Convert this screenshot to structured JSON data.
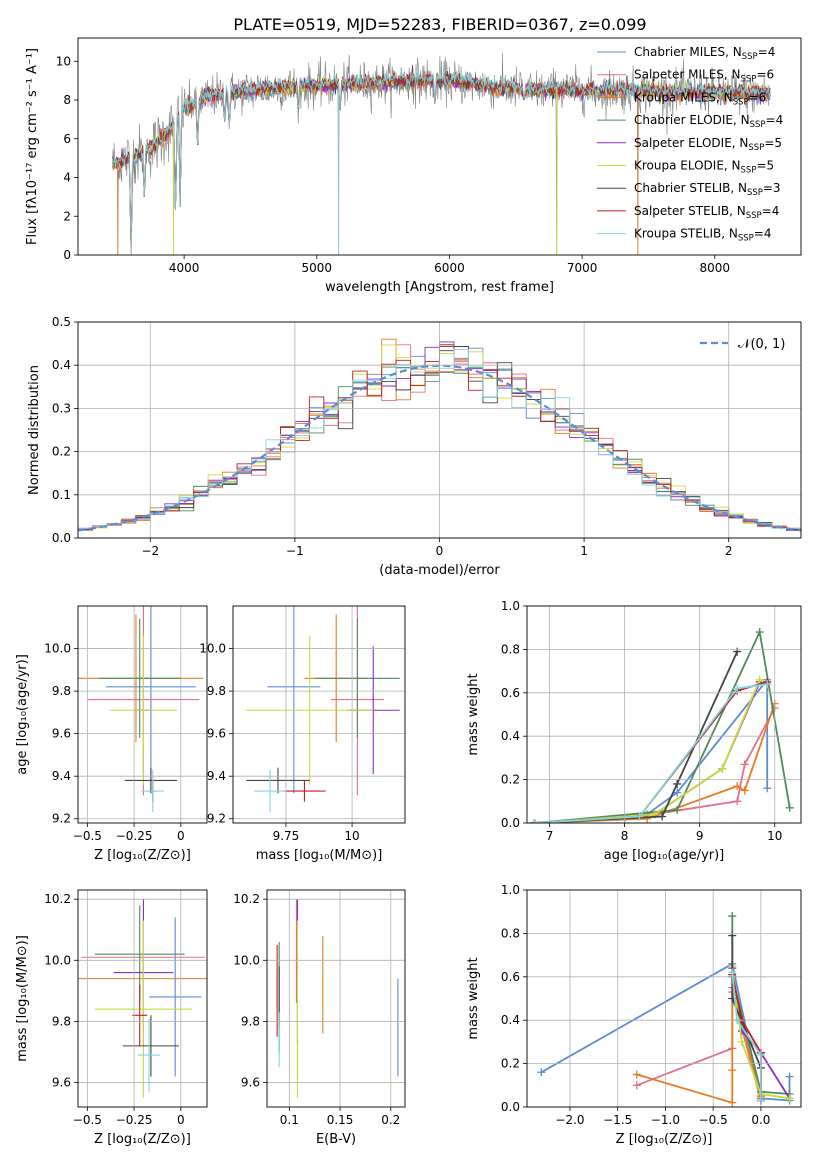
{
  "title": "PLATE=0519, MJD=52283, FIBERID=0367, z=0.099",
  "colors": {
    "Chabrier MILES": "#5b8bd8",
    "Salpeter MILES": "#e36f8a",
    "Kroupa MILES": "#e37c22",
    "Chabrier ELODIE": "#4f8a5a",
    "Salpeter ELODIE": "#8a2ac8",
    "Kroupa ELODIE": "#c9dc3c",
    "Chabrier STELIB": "#444444",
    "Salpeter STELIB": "#c41e1e",
    "Kroupa STELIB": "#7fd6e0"
  },
  "legend_spectrum": [
    {
      "model": "Chabrier MILES",
      "prefix": "Chabrier MILES, N",
      "sub": "SSP",
      "suffix": "=4"
    },
    {
      "model": "Salpeter MILES",
      "prefix": "Salpeter MILES, N",
      "sub": "SSP",
      "suffix": "=6"
    },
    {
      "model": "Kroupa MILES",
      "prefix": "Kroupa MILES, N",
      "sub": "SSP",
      "suffix": "=6"
    },
    {
      "model": "Chabrier ELODIE",
      "prefix": "Chabrier ELODIE, N",
      "sub": "SSP",
      "suffix": "=4"
    },
    {
      "model": "Salpeter ELODIE",
      "prefix": "Salpeter ELODIE, N",
      "sub": "SSP",
      "suffix": "=5"
    },
    {
      "model": "Kroupa ELODIE",
      "prefix": "Kroupa ELODIE, N",
      "sub": "SSP",
      "suffix": "=5"
    },
    {
      "model": "Chabrier STELIB",
      "prefix": "Chabrier STELIB, N",
      "sub": "SSP",
      "suffix": "=3"
    },
    {
      "model": "Salpeter STELIB",
      "prefix": "Salpeter STELIB, N",
      "sub": "SSP",
      "suffix": "=4"
    },
    {
      "model": "Kroupa STELIB",
      "prefix": "Kroupa STELIB, N",
      "sub": "SSP",
      "suffix": "=4"
    }
  ],
  "chart_data": [
    {
      "id": "spectrum",
      "type": "line",
      "xlabel": "wavelength [Angstrom, rest frame]",
      "ylabel": "Flux [fλ10⁻¹⁷ erg cm⁻² s⁻¹ A⁻¹]",
      "xlim": [
        3200,
        8650
      ],
      "ylim": [
        0,
        11.2
      ],
      "xticks": [
        4000,
        5000,
        6000,
        7000,
        8000
      ],
      "yticks": [
        0,
        2,
        4,
        6,
        8,
        10
      ],
      "grid": false,
      "legend": "right",
      "x_range": [
        3460,
        8420
      ],
      "continuum": [
        [
          3460,
          4.7
        ],
        [
          3600,
          5.0
        ],
        [
          3750,
          5.5
        ],
        [
          3900,
          6.5
        ],
        [
          4000,
          7.6
        ],
        [
          4200,
          8.2
        ],
        [
          4400,
          8.4
        ],
        [
          4600,
          8.6
        ],
        [
          4900,
          8.7
        ],
        [
          5200,
          8.8
        ],
        [
          5500,
          8.9
        ],
        [
          5800,
          9.0
        ],
        [
          6000,
          9.0
        ],
        [
          6300,
          8.7
        ],
        [
          6600,
          8.5
        ],
        [
          7000,
          8.5
        ],
        [
          7300,
          8.5
        ],
        [
          7600,
          8.4
        ],
        [
          8000,
          8.4
        ],
        [
          8420,
          8.3
        ]
      ],
      "dips": [
        [
          3600,
          0
        ],
        [
          3700,
          3.0
        ],
        [
          3935,
          2.0
        ],
        [
          3970,
          2.5
        ],
        [
          4101,
          5.5
        ],
        [
          4305,
          6.8
        ],
        [
          4340,
          6.5
        ],
        [
          4861,
          7.3
        ],
        [
          5175,
          7.4
        ],
        [
          5890,
          7.8
        ],
        [
          6563,
          8.0
        ]
      ],
      "spikes": [
        [
          3500,
          0
        ],
        [
          3920,
          0
        ],
        [
          5165,
          0
        ],
        [
          6810,
          0
        ],
        [
          7420,
          0
        ]
      ]
    },
    {
      "id": "residuals",
      "type": "histogram",
      "xlabel": "(data-model)/error",
      "ylabel": "Normed distribution",
      "xlim": [
        -2.5,
        2.5
      ],
      "ylim": [
        0,
        0.5
      ],
      "xticks": [
        -2,
        -1,
        0,
        1,
        2
      ],
      "yticks": [
        0.0,
        0.1,
        0.2,
        0.3,
        0.4,
        0.5
      ],
      "grid": true,
      "legend": "upper right",
      "legend_label": "𝒩(0, 1)",
      "bin_width": 0.1
    },
    {
      "id": "age-vs-Z",
      "type": "errorbar",
      "xlabel": "Z [log₁₀(Z/Z⊙)]",
      "ylabel": "age  [log₁₀(age/yr)]",
      "xlim": [
        -0.55,
        0.14
      ],
      "ylim": [
        9.18,
        10.2
      ],
      "xticks": [
        -0.5,
        -0.25,
        0.0
      ],
      "yticks": [
        9.2,
        9.4,
        9.6,
        9.8,
        10.0
      ],
      "grid": true,
      "points": [
        {
          "model": "Chabrier MILES",
          "x": -0.16,
          "y": 9.82,
          "xerr": 0.24,
          "yerr": 0.5
        },
        {
          "model": "Salpeter MILES",
          "x": -0.2,
          "y": 9.76,
          "xerr": 0.3,
          "yerr": 0.45
        },
        {
          "model": "Kroupa MILES",
          "x": -0.24,
          "y": 9.86,
          "xerr": 0.36,
          "yerr": 0.3
        },
        {
          "model": "Chabrier ELODIE",
          "x": -0.22,
          "y": 9.86,
          "xerr": 0.22,
          "yerr": 0.28
        },
        {
          "model": "Salpeter ELODIE",
          "x": -0.2,
          "y": 9.71,
          "xerr": 0.05,
          "yerr": 0.3
        },
        {
          "model": "Kroupa ELODIE",
          "x": -0.2,
          "y": 9.71,
          "xerr": 0.18,
          "yerr": 0.35
        },
        {
          "model": "Chabrier STELIB",
          "x": -0.16,
          "y": 9.38,
          "xerr": 0.14,
          "yerr": 0.06
        },
        {
          "model": "Salpeter STELIB",
          "x": -0.15,
          "y": 9.33,
          "xerr": 0.02,
          "yerr": 0.05
        },
        {
          "model": "Kroupa STELIB",
          "x": -0.15,
          "y": 9.33,
          "xerr": 0.06,
          "yerr": 0.1
        }
      ]
    },
    {
      "id": "age-vs-mass",
      "type": "errorbar",
      "xlabel": "mass [log₁₀(M/M⊙)]",
      "ylabel": "",
      "xlim": [
        9.55,
        10.2
      ],
      "ylim": [
        9.18,
        10.2
      ],
      "xticks": [
        9.75,
        10.0
      ],
      "yticks": [
        9.2,
        9.4,
        9.6,
        9.8,
        10.0
      ],
      "grid": true,
      "points": [
        {
          "model": "Chabrier MILES",
          "x": 9.78,
          "y": 9.82,
          "xerr": 0.1,
          "yerr": 0.5
        },
        {
          "model": "Salpeter MILES",
          "x": 10.02,
          "y": 9.76,
          "xerr": 0.1,
          "yerr": 0.45
        },
        {
          "model": "Kroupa MILES",
          "x": 9.94,
          "y": 9.86,
          "xerr": 0.12,
          "yerr": 0.3
        },
        {
          "model": "Chabrier ELODIE",
          "x": 10.02,
          "y": 9.86,
          "xerr": 0.16,
          "yerr": 0.28
        },
        {
          "model": "Salpeter ELODIE",
          "x": 10.08,
          "y": 9.71,
          "xerr": 0.1,
          "yerr": 0.3
        },
        {
          "model": "Kroupa ELODIE",
          "x": 9.84,
          "y": 9.71,
          "xerr": 0.24,
          "yerr": 0.35
        },
        {
          "model": "Chabrier STELIB",
          "x": 9.72,
          "y": 9.38,
          "xerr": 0.12,
          "yerr": 0.06
        },
        {
          "model": "Salpeter STELIB",
          "x": 9.82,
          "y": 9.33,
          "xerr": 0.08,
          "yerr": 0.05
        },
        {
          "model": "Kroupa STELIB",
          "x": 9.69,
          "y": 9.33,
          "xerr": 0.06,
          "yerr": 0.1
        }
      ]
    },
    {
      "id": "massweight-vs-age",
      "type": "line",
      "xlabel": "age  [log₁₀(age/yr)]",
      "ylabel": "mass weight",
      "xlim": [
        6.7,
        10.35
      ],
      "ylim": [
        0,
        1.0
      ],
      "xticks": [
        7,
        8,
        9,
        10
      ],
      "yticks": [
        0.0,
        0.2,
        0.4,
        0.6,
        0.8,
        1.0
      ],
      "grid": true,
      "series": [
        {
          "model": "Chabrier MILES",
          "x": [
            6.8,
            8.3,
            8.7,
            9.9,
            9.9
          ],
          "y": [
            0.0,
            0.04,
            0.14,
            0.66,
            0.16
          ]
        },
        {
          "model": "Salpeter MILES",
          "x": [
            6.8,
            8.0,
            9.5,
            9.6,
            10.0
          ],
          "y": [
            0.0,
            0.02,
            0.1,
            0.27,
            0.53
          ]
        },
        {
          "model": "Kroupa MILES",
          "x": [
            6.8,
            8.3,
            9.5,
            9.6,
            10.0
          ],
          "y": [
            0.0,
            0.02,
            0.17,
            0.15,
            0.55
          ]
        },
        {
          "model": "Chabrier ELODIE",
          "x": [
            6.8,
            8.7,
            9.8,
            10.2
          ],
          "y": [
            0.0,
            0.06,
            0.88,
            0.07
          ]
        },
        {
          "model": "Salpeter ELODIE",
          "x": [
            6.8,
            8.4,
            9.3,
            9.8,
            9.9
          ],
          "y": [
            0.0,
            0.04,
            0.25,
            0.65,
            0.64
          ]
        },
        {
          "model": "Kroupa ELODIE",
          "x": [
            6.8,
            8.4,
            9.3,
            9.8,
            9.9
          ],
          "y": [
            0.0,
            0.04,
            0.25,
            0.66,
            0.64
          ]
        },
        {
          "model": "Chabrier STELIB",
          "x": [
            6.8,
            8.5,
            8.7,
            9.5
          ],
          "y": [
            0.0,
            0.03,
            0.18,
            0.79
          ]
        },
        {
          "model": "Salpeter STELIB",
          "x": [
            6.8,
            8.2,
            9.5,
            9.9
          ],
          "y": [
            0.0,
            0.03,
            0.61,
            0.65
          ]
        },
        {
          "model": "Kroupa STELIB",
          "x": [
            6.8,
            8.2,
            9.5,
            9.9
          ],
          "y": [
            0.0,
            0.03,
            0.62,
            0.64
          ]
        }
      ]
    },
    {
      "id": "mass-vs-Z",
      "type": "errorbar",
      "xlabel": "Z [log₁₀(Z/Z⊙)]",
      "ylabel": "mass [log₁₀(M/M⊙)]",
      "xlim": [
        -0.55,
        0.14
      ],
      "ylim": [
        9.52,
        10.23
      ],
      "xticks": [
        -0.5,
        -0.25,
        0.0
      ],
      "yticks": [
        9.6,
        9.8,
        10.0,
        10.2
      ],
      "grid": true,
      "points": [
        {
          "model": "Chabrier MILES",
          "x": -0.03,
          "y": 9.88,
          "xerr": 0.14,
          "yerr": 0.26
        },
        {
          "model": "Salpeter MILES",
          "x": -0.2,
          "y": 10.01,
          "xerr": 0.33,
          "yerr": 0.15
        },
        {
          "model": "Kroupa MILES",
          "x": -0.2,
          "y": 9.94,
          "xerr": 0.36,
          "yerr": 0.18
        },
        {
          "model": "Chabrier ELODIE",
          "x": -0.22,
          "y": 10.02,
          "xerr": 0.24,
          "yerr": 0.16
        },
        {
          "model": "Salpeter ELODIE",
          "x": -0.2,
          "y": 9.96,
          "xerr": 0.16,
          "yerr": 0.24
        },
        {
          "model": "Kroupa ELODIE",
          "x": -0.2,
          "y": 9.84,
          "xerr": 0.26,
          "yerr": 0.29
        },
        {
          "model": "Chabrier STELIB",
          "x": -0.16,
          "y": 9.72,
          "xerr": 0.15,
          "yerr": 0.1
        },
        {
          "model": "Salpeter STELIB",
          "x": -0.22,
          "y": 9.82,
          "xerr": 0.04,
          "yerr": 0.1
        },
        {
          "model": "Kroupa STELIB",
          "x": -0.17,
          "y": 9.69,
          "xerr": 0.06,
          "yerr": 0.12
        }
      ]
    },
    {
      "id": "mass-vs-ebv",
      "type": "errorbar",
      "xlabel": "E(B-V)",
      "ylabel": "",
      "xlim": [
        0.078,
        0.214
      ],
      "ylim": [
        9.52,
        10.23
      ],
      "xticks": [
        0.1,
        0.15,
        0.2
      ],
      "yticks": [
        9.6,
        9.8,
        10.0,
        10.2
      ],
      "grid": true,
      "points": [
        {
          "model": "Chabrier MILES",
          "x": 0.207,
          "y": 9.78,
          "xerr": 0,
          "yerr": 0.16
        },
        {
          "model": "Salpeter MILES",
          "x": 0.107,
          "y": 10.03,
          "xerr": 0,
          "yerr": 0.17
        },
        {
          "model": "Kroupa MILES",
          "x": 0.133,
          "y": 9.92,
          "xerr": 0,
          "yerr": 0.16
        },
        {
          "model": "Chabrier ELODIE",
          "x": 0.09,
          "y": 9.88,
          "xerr": 0,
          "yerr": 0.18
        },
        {
          "model": "Salpeter ELODIE",
          "x": 0.108,
          "y": 9.96,
          "xerr": 0,
          "yerr": 0.24
        },
        {
          "model": "Kroupa ELODIE",
          "x": 0.108,
          "y": 9.84,
          "xerr": 0,
          "yerr": 0.29
        },
        {
          "model": "Chabrier STELIB",
          "x": 0.09,
          "y": 9.88,
          "xerr": 0,
          "yerr": 0.1
        },
        {
          "model": "Salpeter STELIB",
          "x": 0.088,
          "y": 9.9,
          "xerr": 0,
          "yerr": 0.15
        },
        {
          "model": "Kroupa STELIB",
          "x": 0.09,
          "y": 9.74,
          "xerr": 0,
          "yerr": 0.09
        }
      ]
    },
    {
      "id": "massweight-vs-Z",
      "type": "line",
      "xlabel": "Z [log₁₀(Z/Z⊙)]",
      "ylabel": "mass weight",
      "xlim": [
        -2.45,
        0.42
      ],
      "ylim": [
        0,
        1.0
      ],
      "xticks": [
        -2.0,
        -1.5,
        -1.0,
        -0.5,
        0.0
      ],
      "yticks": [
        0.0,
        0.2,
        0.4,
        0.6,
        0.8,
        1.0
      ],
      "grid": true,
      "series": [
        {
          "model": "Chabrier MILES",
          "x": [
            -2.3,
            -0.3,
            0.0,
            0.3,
            0.3
          ],
          "y": [
            0.16,
            0.66,
            0.04,
            0.03,
            0.14
          ]
        },
        {
          "model": "Salpeter MILES",
          "x": [
            -1.3,
            -0.3,
            -0.3,
            0.0,
            0.0
          ],
          "y": [
            0.1,
            0.27,
            0.53,
            0.03,
            0.05
          ]
        },
        {
          "model": "Kroupa MILES",
          "x": [
            -1.3,
            -0.3,
            -0.3,
            -0.3,
            0.0
          ],
          "y": [
            0.15,
            0.02,
            0.17,
            0.55,
            0.05
          ]
        },
        {
          "model": "Chabrier ELODIE",
          "x": [
            -0.3,
            -0.3,
            0.0,
            0.3
          ],
          "y": [
            0.88,
            0.6,
            0.07,
            0.06
          ]
        },
        {
          "model": "Salpeter ELODIE",
          "x": [
            -0.3,
            -0.2,
            0.0,
            0.3
          ],
          "y": [
            0.64,
            0.35,
            0.25,
            0.04
          ]
        },
        {
          "model": "Kroupa ELODIE",
          "x": [
            -0.3,
            -0.2,
            0.0,
            0.3
          ],
          "y": [
            0.65,
            0.3,
            0.06,
            0.04
          ]
        },
        {
          "model": "Chabrier STELIB",
          "x": [
            -0.3,
            -0.3,
            0.0,
            0.0
          ],
          "y": [
            0.79,
            0.5,
            0.18,
            0.03
          ]
        },
        {
          "model": "Salpeter STELIB",
          "x": [
            -0.3,
            -0.2,
            0.0,
            0.0
          ],
          "y": [
            0.61,
            0.4,
            0.25,
            0.03
          ]
        },
        {
          "model": "Kroupa STELIB",
          "x": [
            -0.3,
            -0.25,
            0.0,
            0.0
          ],
          "y": [
            0.62,
            0.4,
            0.24,
            0.03
          ]
        }
      ]
    }
  ]
}
